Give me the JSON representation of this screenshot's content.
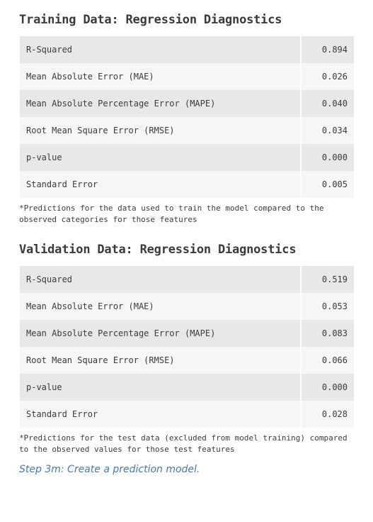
{
  "training": {
    "title": "Training Data: Regression Diagnostics",
    "rows": [
      {
        "metric": "R-Squared",
        "value": "0.894"
      },
      {
        "metric": "Mean Absolute Error (MAE)",
        "value": "0.026"
      },
      {
        "metric": "Mean Absolute Percentage Error (MAPE)",
        "value": "0.040"
      },
      {
        "metric": "Root Mean Square Error (RMSE)",
        "value": "0.034"
      },
      {
        "metric": "p-value",
        "value": "0.000"
      },
      {
        "metric": "Standard Error",
        "value": "0.005"
      }
    ],
    "note": "*Predictions for the data used to train the model compared to the observed categories for those features"
  },
  "validation": {
    "title": "Validation Data: Regression Diagnostics",
    "rows": [
      {
        "metric": "R-Squared",
        "value": "0.519"
      },
      {
        "metric": "Mean Absolute Error (MAE)",
        "value": "0.053"
      },
      {
        "metric": "Mean Absolute Percentage Error (MAPE)",
        "value": "0.083"
      },
      {
        "metric": "Root Mean Square Error (RMSE)",
        "value": "0.066"
      },
      {
        "metric": "p-value",
        "value": "0.000"
      },
      {
        "metric": "Standard Error",
        "value": "0.028"
      }
    ],
    "note": "*Predictions for the test data (excluded from model training) compared to the observed values for those test features"
  },
  "caption": "Step 3m: Create a prediction model.",
  "colors": {
    "caption": "#4a79a8",
    "row_dark": "#e8e8e8",
    "row_light": "#f6f6f6",
    "text": "#3b3b3b"
  }
}
